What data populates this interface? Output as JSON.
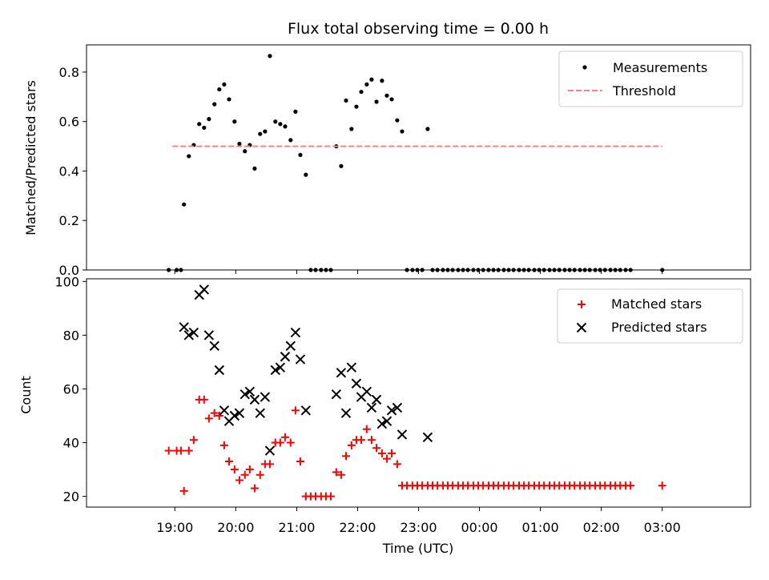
{
  "chart_data": {
    "type": "scatter",
    "title": "Flux total observing time = 0.00 h",
    "xlabel": "Time (UTC)",
    "x_ticks": [
      "19:00",
      "20:00",
      "21:00",
      "22:00",
      "23:00",
      "00:00",
      "01:00",
      "02:00",
      "03:00"
    ],
    "x_tick_hours": [
      19,
      20,
      21,
      22,
      23,
      24,
      25,
      26,
      27
    ],
    "xlim_hours": [
      17.55,
      28.45
    ],
    "colors": {
      "measurements": "#000000",
      "threshold": "#ff7f7f",
      "matched": "#ff0000",
      "predicted": "#000000"
    },
    "top": {
      "ylabel": "Matched/Predicted stars",
      "ylim": [
        0,
        0.91
      ],
      "yticks": [
        0.0,
        0.2,
        0.4,
        0.6,
        0.8
      ],
      "ytick_labels": [
        "0.0",
        "0.2",
        "0.4",
        "0.6",
        "0.8"
      ],
      "legend_position": "upper right",
      "threshold": {
        "name": "Threshold",
        "value": 0.5,
        "x_range_hours": [
          18.96,
          27.0
        ]
      },
      "series": [
        {
          "name": "Measurements",
          "marker": "dot",
          "points": [
            [
              18.9,
              0.0
            ],
            [
              19.03,
              0.0
            ],
            [
              19.1,
              0.0
            ],
            [
              19.15,
              0.265
            ],
            [
              19.23,
              0.46
            ],
            [
              19.31,
              0.505
            ],
            [
              19.4,
              0.59
            ],
            [
              19.48,
              0.575
            ],
            [
              19.56,
              0.61
            ],
            [
              19.65,
              0.67
            ],
            [
              19.73,
              0.73
            ],
            [
              19.81,
              0.75
            ],
            [
              19.89,
              0.69
            ],
            [
              19.98,
              0.6
            ],
            [
              20.06,
              0.51
            ],
            [
              20.15,
              0.48
            ],
            [
              20.23,
              0.505
            ],
            [
              20.31,
              0.41
            ],
            [
              20.4,
              0.55
            ],
            [
              20.48,
              0.56
            ],
            [
              20.56,
              0.865
            ],
            [
              20.65,
              0.6
            ],
            [
              20.73,
              0.59
            ],
            [
              20.81,
              0.58
            ],
            [
              20.9,
              0.525
            ],
            [
              20.98,
              0.64
            ],
            [
              21.06,
              0.465
            ],
            [
              21.15,
              0.385
            ],
            [
              21.23,
              0.0
            ],
            [
              21.31,
              0.0
            ],
            [
              21.4,
              0.0
            ],
            [
              21.48,
              0.0
            ],
            [
              21.56,
              0.0
            ],
            [
              21.65,
              0.5
            ],
            [
              21.73,
              0.42
            ],
            [
              21.81,
              0.685
            ],
            [
              21.9,
              0.57
            ],
            [
              21.98,
              0.66
            ],
            [
              22.06,
              0.72
            ],
            [
              22.15,
              0.75
            ],
            [
              22.23,
              0.77
            ],
            [
              22.31,
              0.68
            ],
            [
              22.4,
              0.765
            ],
            [
              22.48,
              0.705
            ],
            [
              22.56,
              0.69
            ],
            [
              22.65,
              0.605
            ],
            [
              22.73,
              0.56
            ],
            [
              22.81,
              0.0
            ],
            [
              22.9,
              0.0
            ],
            [
              22.98,
              0.0
            ],
            [
              23.06,
              0.0
            ],
            [
              23.15,
              0.57
            ],
            [
              23.23,
              0.0
            ],
            [
              23.31,
              0.0
            ],
            [
              23.4,
              0.0
            ],
            [
              23.48,
              0.0
            ],
            [
              23.56,
              0.0
            ],
            [
              23.65,
              0.0
            ],
            [
              23.73,
              0.0
            ],
            [
              23.81,
              0.0
            ],
            [
              23.9,
              0.0
            ],
            [
              23.98,
              0.0
            ],
            [
              24.06,
              0.0
            ],
            [
              24.15,
              0.0
            ],
            [
              24.23,
              0.0
            ],
            [
              24.31,
              0.0
            ],
            [
              24.4,
              0.0
            ],
            [
              24.48,
              0.0
            ],
            [
              24.56,
              0.0
            ],
            [
              24.65,
              0.0
            ],
            [
              24.73,
              0.0
            ],
            [
              24.81,
              0.0
            ],
            [
              24.9,
              0.0
            ],
            [
              24.98,
              0.0
            ],
            [
              25.06,
              0.0
            ],
            [
              25.15,
              0.0
            ],
            [
              25.23,
              0.0
            ],
            [
              25.31,
              0.0
            ],
            [
              25.4,
              0.0
            ],
            [
              25.48,
              0.0
            ],
            [
              25.56,
              0.0
            ],
            [
              25.65,
              0.0
            ],
            [
              25.73,
              0.0
            ],
            [
              25.81,
              0.0
            ],
            [
              25.9,
              0.0
            ],
            [
              25.98,
              0.0
            ],
            [
              26.06,
              0.0
            ],
            [
              26.15,
              0.0
            ],
            [
              26.23,
              0.0
            ],
            [
              26.31,
              0.0
            ],
            [
              26.4,
              0.0
            ],
            [
              26.48,
              0.0
            ],
            [
              27.0,
              0.0
            ]
          ]
        }
      ]
    },
    "bottom": {
      "ylabel": "Count",
      "ylim": [
        16,
        101
      ],
      "yticks": [
        20,
        40,
        60,
        80,
        100
      ],
      "ytick_labels": [
        "20",
        "40",
        "60",
        "80",
        "100"
      ],
      "legend_position": "upper right",
      "series": [
        {
          "name": "Matched stars",
          "marker": "plus",
          "points": [
            [
              18.9,
              37
            ],
            [
              19.03,
              37
            ],
            [
              19.1,
              37
            ],
            [
              19.15,
              22
            ],
            [
              19.23,
              37
            ],
            [
              19.31,
              41
            ],
            [
              19.4,
              56
            ],
            [
              19.48,
              56
            ],
            [
              19.56,
              49
            ],
            [
              19.65,
              51
            ],
            [
              19.73,
              50
            ],
            [
              19.81,
              39
            ],
            [
              19.89,
              33
            ],
            [
              19.98,
              30
            ],
            [
              20.06,
              26
            ],
            [
              20.15,
              28
            ],
            [
              20.23,
              30
            ],
            [
              20.31,
              23
            ],
            [
              20.4,
              28
            ],
            [
              20.48,
              32
            ],
            [
              20.56,
              32
            ],
            [
              20.65,
              40
            ],
            [
              20.73,
              40
            ],
            [
              20.81,
              42
            ],
            [
              20.9,
              40
            ],
            [
              20.98,
              52
            ],
            [
              21.06,
              33
            ],
            [
              21.15,
              20
            ],
            [
              21.23,
              20
            ],
            [
              21.31,
              20
            ],
            [
              21.4,
              20
            ],
            [
              21.48,
              20
            ],
            [
              21.56,
              20
            ],
            [
              21.65,
              29
            ],
            [
              21.73,
              28
            ],
            [
              21.81,
              35
            ],
            [
              21.9,
              39
            ],
            [
              21.98,
              41
            ],
            [
              22.06,
              41
            ],
            [
              22.15,
              45
            ],
            [
              22.23,
              41
            ],
            [
              22.31,
              38
            ],
            [
              22.4,
              36
            ],
            [
              22.48,
              34
            ],
            [
              22.56,
              36
            ],
            [
              22.65,
              32
            ],
            [
              22.73,
              24
            ],
            [
              22.81,
              24
            ],
            [
              22.9,
              24
            ],
            [
              22.98,
              24
            ],
            [
              23.06,
              24
            ],
            [
              23.15,
              24
            ],
            [
              23.23,
              24
            ],
            [
              23.31,
              24
            ],
            [
              23.4,
              24
            ],
            [
              23.48,
              24
            ],
            [
              23.56,
              24
            ],
            [
              23.65,
              24
            ],
            [
              23.73,
              24
            ],
            [
              23.81,
              24
            ],
            [
              23.9,
              24
            ],
            [
              23.98,
              24
            ],
            [
              24.06,
              24
            ],
            [
              24.15,
              24
            ],
            [
              24.23,
              24
            ],
            [
              24.31,
              24
            ],
            [
              24.4,
              24
            ],
            [
              24.48,
              24
            ],
            [
              24.56,
              24
            ],
            [
              24.65,
              24
            ],
            [
              24.73,
              24
            ],
            [
              24.81,
              24
            ],
            [
              24.9,
              24
            ],
            [
              24.98,
              24
            ],
            [
              25.06,
              24
            ],
            [
              25.15,
              24
            ],
            [
              25.23,
              24
            ],
            [
              25.31,
              24
            ],
            [
              25.4,
              24
            ],
            [
              25.48,
              24
            ],
            [
              25.56,
              24
            ],
            [
              25.65,
              24
            ],
            [
              25.73,
              24
            ],
            [
              25.81,
              24
            ],
            [
              25.9,
              24
            ],
            [
              25.98,
              24
            ],
            [
              26.06,
              24
            ],
            [
              26.15,
              24
            ],
            [
              26.23,
              24
            ],
            [
              26.31,
              24
            ],
            [
              26.4,
              24
            ],
            [
              26.48,
              24
            ],
            [
              27.0,
              24
            ]
          ]
        },
        {
          "name": "Predicted stars",
          "marker": "x",
          "points": [
            [
              19.15,
              83
            ],
            [
              19.23,
              80
            ],
            [
              19.31,
              81
            ],
            [
              19.4,
              95
            ],
            [
              19.48,
              97
            ],
            [
              19.56,
              80
            ],
            [
              19.65,
              76
            ],
            [
              19.73,
              67
            ],
            [
              19.81,
              52
            ],
            [
              19.89,
              48
            ],
            [
              19.98,
              50
            ],
            [
              20.06,
              51
            ],
            [
              20.15,
              58
            ],
            [
              20.23,
              59
            ],
            [
              20.31,
              56
            ],
            [
              20.4,
              51
            ],
            [
              20.48,
              57
            ],
            [
              20.56,
              37
            ],
            [
              20.65,
              67
            ],
            [
              20.73,
              68
            ],
            [
              20.81,
              72
            ],
            [
              20.9,
              76
            ],
            [
              20.98,
              81
            ],
            [
              21.06,
              71
            ],
            [
              21.15,
              52
            ],
            [
              21.65,
              58
            ],
            [
              21.73,
              66
            ],
            [
              21.81,
              51
            ],
            [
              21.9,
              68
            ],
            [
              21.98,
              62
            ],
            [
              22.06,
              57
            ],
            [
              22.15,
              59
            ],
            [
              22.23,
              53
            ],
            [
              22.31,
              56
            ],
            [
              22.4,
              47
            ],
            [
              22.48,
              48
            ],
            [
              22.56,
              52
            ],
            [
              22.65,
              53
            ],
            [
              22.73,
              43
            ],
            [
              23.15,
              42
            ]
          ]
        }
      ]
    }
  }
}
